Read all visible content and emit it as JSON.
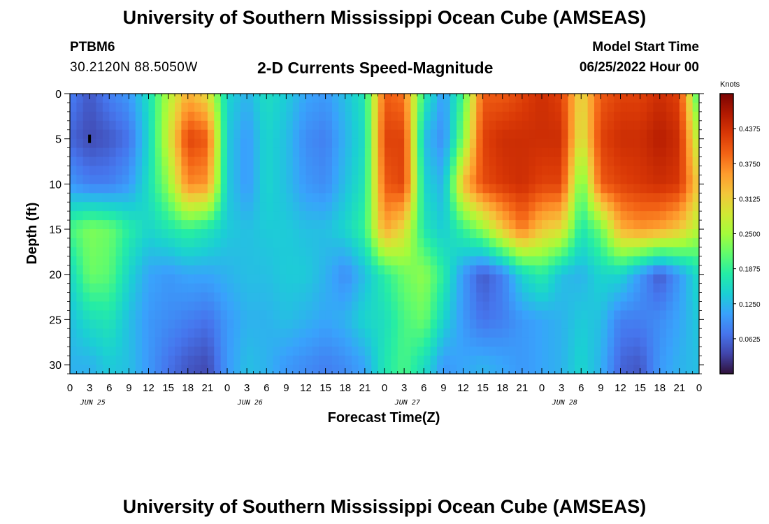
{
  "header": {
    "title": "University of Southern Mississippi Ocean Cube (AMSEAS)",
    "station": "PTBM6",
    "coords": "30.2120N  88.5050W",
    "subtitle": "2-D Currents Speed-Magnitude",
    "model_start_label": "Model Start Time",
    "model_start_value": "06/25/2022 Hour 00"
  },
  "footer": {
    "title": "University of Southern Mississippi Ocean Cube (AMSEAS)"
  },
  "chart_data": {
    "type": "heatmap",
    "title": "2-D Currents Speed-Magnitude",
    "xlabel": "Forecast Time(Z)",
    "ylabel": "Depth (ft)",
    "x_tick_labels": [
      "0",
      "3",
      "6",
      "9",
      "12",
      "15",
      "18",
      "21",
      "0",
      "3",
      "6",
      "9",
      "12",
      "15",
      "18",
      "21",
      "0",
      "3",
      "6",
      "9",
      "12",
      "15",
      "18",
      "21",
      "0",
      "3",
      "6",
      "9",
      "12",
      "15",
      "18",
      "21",
      "0"
    ],
    "date_labels": [
      {
        "label": "JUN 25",
        "hour": 3.5
      },
      {
        "label": "JUN 26",
        "hour": 27.5
      },
      {
        "label": "JUN 27",
        "hour": 51.5
      },
      {
        "label": "JUN 28",
        "hour": 75.5
      }
    ],
    "xlim": [
      0,
      96
    ],
    "y_ticks": [
      0,
      5,
      10,
      15,
      20,
      25,
      30
    ],
    "ylim": [
      0,
      31
    ],
    "colorbar": {
      "label": "Knots",
      "ticks": [
        "0.4375",
        "0.3750",
        "0.3125",
        "0.2500",
        "0.1875",
        "0.1250",
        "0.0625"
      ],
      "tick_values": [
        0.4375,
        0.375,
        0.3125,
        0.25,
        0.1875,
        0.125,
        0.0625
      ],
      "range": [
        0,
        0.5
      ],
      "stops": [
        "#30123b",
        "#4145ab",
        "#4675ed",
        "#39a2fc",
        "#1bcfd4",
        "#24eca6",
        "#61fc6c",
        "#a4fc3b",
        "#d1e834",
        "#f3c63a",
        "#fe9b2d",
        "#f36315",
        "#d93806",
        "#b11901",
        "#7a0403"
      ]
    },
    "value_grid_knots": {
      "hours": [
        0,
        3,
        6,
        9,
        12,
        15,
        18,
        21,
        24,
        27,
        30,
        33,
        36,
        39,
        42,
        45,
        48,
        51,
        54,
        57,
        60,
        63,
        66,
        69,
        72,
        75,
        78,
        81,
        84,
        87,
        90,
        93,
        96
      ],
      "depths_ft": [
        0,
        5,
        10,
        15,
        20,
        25,
        30
      ],
      "rows": [
        [
          0.08,
          0.05,
          0.08,
          0.1,
          0.16,
          0.26,
          0.34,
          0.3,
          0.15,
          0.12,
          0.16,
          0.14,
          0.11,
          0.1,
          0.13,
          0.17,
          0.4,
          0.38,
          0.18,
          0.1,
          0.2,
          0.4,
          0.4,
          0.42,
          0.44,
          0.42,
          0.3,
          0.4,
          0.42,
          0.42,
          0.44,
          0.42,
          0.18
        ],
        [
          0.06,
          0.04,
          0.05,
          0.07,
          0.15,
          0.28,
          0.42,
          0.4,
          0.14,
          0.1,
          0.15,
          0.13,
          0.09,
          0.08,
          0.12,
          0.16,
          0.42,
          0.42,
          0.13,
          0.09,
          0.23,
          0.42,
          0.44,
          0.44,
          0.44,
          0.44,
          0.28,
          0.42,
          0.44,
          0.44,
          0.46,
          0.44,
          0.25
        ],
        [
          0.1,
          0.08,
          0.08,
          0.1,
          0.16,
          0.24,
          0.37,
          0.36,
          0.14,
          0.1,
          0.15,
          0.13,
          0.1,
          0.09,
          0.13,
          0.17,
          0.4,
          0.42,
          0.15,
          0.12,
          0.33,
          0.41,
          0.43,
          0.44,
          0.42,
          0.42,
          0.21,
          0.4,
          0.42,
          0.43,
          0.44,
          0.43,
          0.31
        ],
        [
          0.2,
          0.23,
          0.22,
          0.18,
          0.15,
          0.17,
          0.19,
          0.17,
          0.14,
          0.13,
          0.14,
          0.14,
          0.13,
          0.13,
          0.15,
          0.19,
          0.35,
          0.3,
          0.17,
          0.14,
          0.19,
          0.24,
          0.32,
          0.38,
          0.32,
          0.3,
          0.17,
          0.22,
          0.34,
          0.36,
          0.35,
          0.32,
          0.26
        ],
        [
          0.15,
          0.22,
          0.21,
          0.15,
          0.11,
          0.1,
          0.11,
          0.11,
          0.12,
          0.13,
          0.13,
          0.14,
          0.14,
          0.12,
          0.09,
          0.13,
          0.18,
          0.22,
          0.24,
          0.18,
          0.1,
          0.05,
          0.08,
          0.15,
          0.18,
          0.13,
          0.12,
          0.15,
          0.15,
          0.1,
          0.05,
          0.1,
          0.16
        ],
        [
          0.13,
          0.16,
          0.17,
          0.13,
          0.1,
          0.09,
          0.08,
          0.07,
          0.1,
          0.12,
          0.12,
          0.13,
          0.12,
          0.11,
          0.12,
          0.15,
          0.16,
          0.2,
          0.22,
          0.15,
          0.1,
          0.07,
          0.08,
          0.1,
          0.11,
          0.12,
          0.14,
          0.13,
          0.08,
          0.08,
          0.09,
          0.11,
          0.14
        ],
        [
          0.12,
          0.12,
          0.14,
          0.13,
          0.1,
          0.07,
          0.05,
          0.04,
          0.1,
          0.13,
          0.12,
          0.1,
          0.09,
          0.08,
          0.09,
          0.11,
          0.17,
          0.2,
          0.16,
          0.1,
          0.11,
          0.12,
          0.11,
          0.1,
          0.11,
          0.12,
          0.15,
          0.12,
          0.06,
          0.05,
          0.1,
          0.12,
          0.13
        ]
      ]
    },
    "markers": [
      {
        "hour": 3.0,
        "depth_ft": 5.0
      }
    ]
  }
}
